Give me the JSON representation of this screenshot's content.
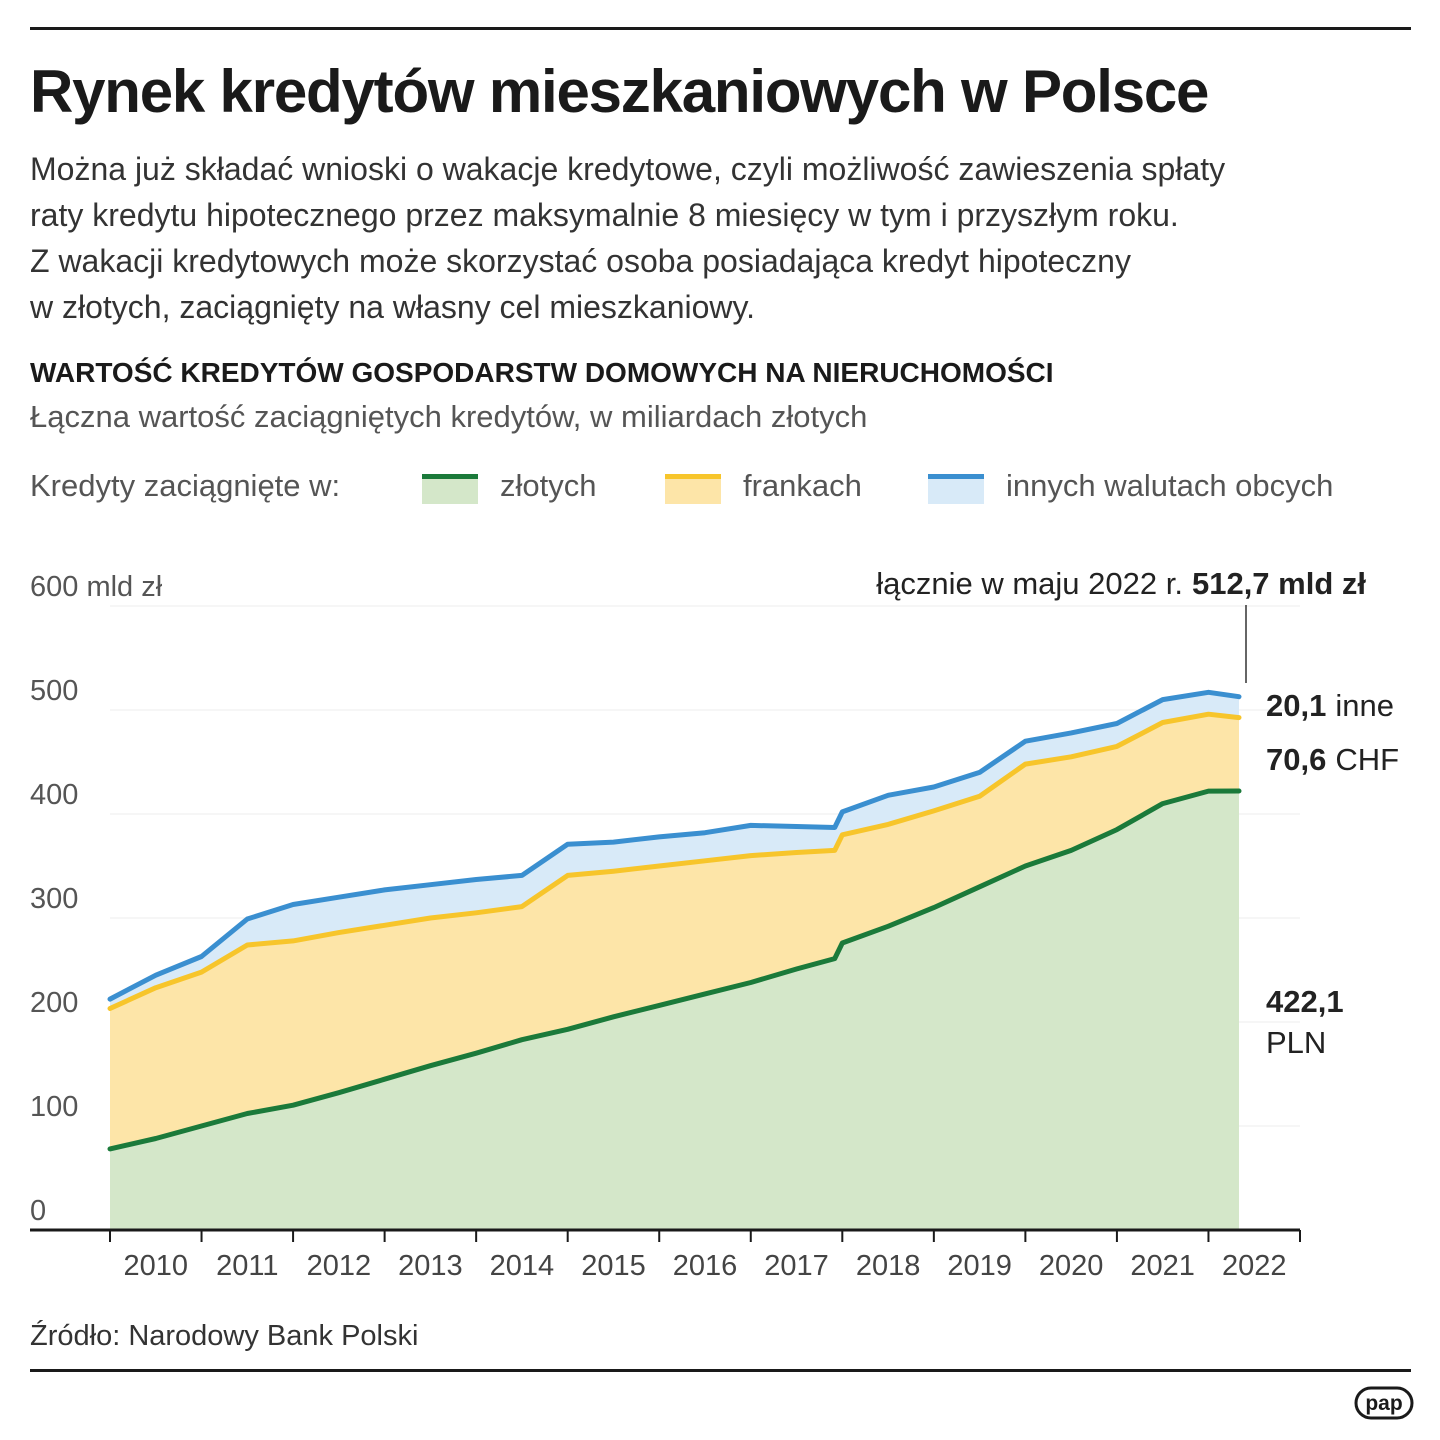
{
  "header": {
    "title": "Rynek kredytów mieszkaniowych w Polsce",
    "intro_lines": [
      "Można już składać wnioski o wakacje kredytowe, czyli możliwość zawieszenia spłaty",
      "raty kredytu hipotecznego przez maksymalnie 8 miesięcy w tym i przyszłym roku.",
      "Z wakacji kredytowych może skorzystać osoba posiadająca kredyt hipoteczny",
      "w złotych, zaciągnięty na własny cel mieszkaniowy."
    ]
  },
  "legend": {
    "label": "Kredyty zaciągnięte w:",
    "items": [
      {
        "label": "złotych",
        "line_color": "#1b7a3a",
        "fill_color": "#d4e7c9"
      },
      {
        "label": "frankach",
        "line_color": "#f7c52b",
        "fill_color": "#fde5a8"
      },
      {
        "label": "innych walutach obcych",
        "line_color": "#3a8fd0",
        "fill_color": "#d8eaf8"
      }
    ]
  },
  "annotations": {
    "total_prefix": "łącznie w maju 2022 r.",
    "total_value": "512,7 mld zł",
    "other_value": "20,1",
    "other_unit": "inne",
    "chf_value": "70,6",
    "chf_unit": "CHF",
    "pln_value": "422,1",
    "pln_unit": "PLN"
  },
  "source": "Źródło: Narodowy Bank Polski",
  "logo": {
    "text": "pap"
  },
  "chart_data": {
    "type": "area",
    "stacked": true,
    "title": "WARTOŚĆ KREDYTÓW GOSPODARSTW DOMOWYCH NA NIERUCHOMOŚCI",
    "subtitle": "Łączna wartość zaciągniętych kredytów, w miliardach złotych",
    "y_unit_label": "600 mld zł",
    "ylim": [
      0,
      600
    ],
    "y_ticks": [
      0,
      100,
      200,
      300,
      400,
      500,
      600
    ],
    "y_tick_labels": [
      "0",
      "100",
      "200",
      "300",
      "400",
      "500",
      "600 mld zł"
    ],
    "x_tick_labels": [
      "2010",
      "2011",
      "2012",
      "2013",
      "2014",
      "2015",
      "2016",
      "2017",
      "2018",
      "2019",
      "2020",
      "2021",
      "2022"
    ],
    "x_range": [
      "2010-01",
      "2022-12"
    ],
    "grid": true,
    "legend_position": "top",
    "series": [
      {
        "name": "złotych",
        "color": "#1b7a3a",
        "fill": "#d4e7c9",
        "points": [
          [
            "2010-01",
            78
          ],
          [
            "2010-07",
            88
          ],
          [
            "2011-01",
            100
          ],
          [
            "2011-07",
            112
          ],
          [
            "2012-01",
            120
          ],
          [
            "2012-07",
            132
          ],
          [
            "2013-01",
            145
          ],
          [
            "2013-07",
            158
          ],
          [
            "2014-01",
            170
          ],
          [
            "2014-07",
            183
          ],
          [
            "2015-01",
            193
          ],
          [
            "2015-07",
            205
          ],
          [
            "2016-01",
            216
          ],
          [
            "2016-07",
            227
          ],
          [
            "2017-01",
            238
          ],
          [
            "2017-07",
            251
          ],
          [
            "2017-12",
            261
          ],
          [
            "2018-01",
            276
          ],
          [
            "2018-07",
            292
          ],
          [
            "2019-01",
            310
          ],
          [
            "2019-07",
            330
          ],
          [
            "2020-01",
            350
          ],
          [
            "2020-07",
            365
          ],
          [
            "2021-01",
            385
          ],
          [
            "2021-07",
            410
          ],
          [
            "2022-01",
            422
          ],
          [
            "2022-05",
            422.1
          ]
        ]
      },
      {
        "name": "frankach",
        "color": "#f7c52b",
        "fill": "#fde5a8",
        "points": [
          [
            "2010-01",
            135
          ],
          [
            "2010-07",
            145
          ],
          [
            "2011-01",
            148
          ],
          [
            "2011-07",
            162
          ],
          [
            "2012-01",
            158
          ],
          [
            "2012-07",
            154
          ],
          [
            "2013-01",
            148
          ],
          [
            "2013-07",
            142
          ],
          [
            "2014-01",
            135
          ],
          [
            "2014-07",
            128
          ],
          [
            "2015-01",
            148
          ],
          [
            "2015-07",
            140
          ],
          [
            "2016-01",
            134
          ],
          [
            "2016-07",
            128
          ],
          [
            "2017-01",
            122
          ],
          [
            "2017-07",
            112
          ],
          [
            "2017-12",
            104
          ],
          [
            "2018-01",
            104
          ],
          [
            "2018-07",
            98
          ],
          [
            "2019-01",
            93
          ],
          [
            "2019-07",
            87
          ],
          [
            "2020-01",
            98
          ],
          [
            "2020-07",
            90
          ],
          [
            "2021-01",
            80
          ],
          [
            "2021-07",
            78
          ],
          [
            "2022-01",
            74
          ],
          [
            "2022-05",
            70.6
          ]
        ]
      },
      {
        "name": "innych walutach obcych",
        "color": "#3a8fd0",
        "fill": "#d8eaf8",
        "points": [
          [
            "2010-01",
            9
          ],
          [
            "2010-07",
            12
          ],
          [
            "2011-01",
            15
          ],
          [
            "2011-07",
            25
          ],
          [
            "2012-01",
            35
          ],
          [
            "2012-07",
            34
          ],
          [
            "2013-01",
            34
          ],
          [
            "2013-07",
            32
          ],
          [
            "2014-01",
            32
          ],
          [
            "2014-07",
            30
          ],
          [
            "2015-01",
            30
          ],
          [
            "2015-07",
            28
          ],
          [
            "2016-01",
            28
          ],
          [
            "2016-07",
            27
          ],
          [
            "2017-01",
            29
          ],
          [
            "2017-07",
            25
          ],
          [
            "2017-12",
            22
          ],
          [
            "2018-01",
            22
          ],
          [
            "2018-07",
            28
          ],
          [
            "2019-01",
            23
          ],
          [
            "2019-07",
            23
          ],
          [
            "2020-01",
            22
          ],
          [
            "2020-07",
            23
          ],
          [
            "2021-01",
            22
          ],
          [
            "2021-07",
            22
          ],
          [
            "2022-01",
            21
          ],
          [
            "2022-05",
            20.1
          ]
        ]
      }
    ]
  }
}
